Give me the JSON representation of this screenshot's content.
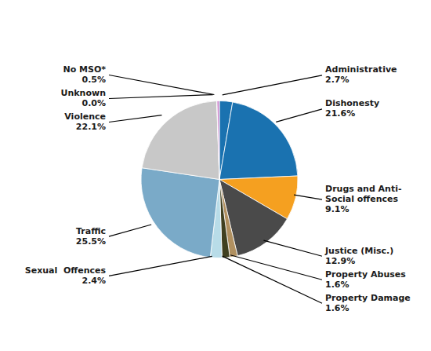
{
  "chart_data": {
    "type": "pie",
    "categories": [
      "Administrative",
      "Dishonesty",
      "Drugs and Anti-\nSocial offences",
      "Justice (Misc.)",
      "Property Abuses",
      "Property Damage",
      "Sexual  Offences",
      "Traffic",
      "Violence",
      "Unknown",
      "No MSO*"
    ],
    "values": [
      2.7,
      21.6,
      9.1,
      12.9,
      1.6,
      1.6,
      2.4,
      25.5,
      22.1,
      0.05,
      0.5
    ],
    "value_labels": [
      "2.7%",
      "21.6%",
      "9.1%",
      "12.9%",
      "1.6%",
      "1.6%",
      "2.4%",
      "25.5%",
      "22.1%",
      "0.0%",
      "0.5%"
    ],
    "colors": [
      "#1a72b0",
      "#1a72b0",
      "#f5a020",
      "#4a4a4a",
      "#b09060",
      "#404020",
      "#b8dce8",
      "#7aaac8",
      "#c8c8c8",
      "#c0c0c0",
      "#d090d0"
    ],
    "data_labels": true
  }
}
